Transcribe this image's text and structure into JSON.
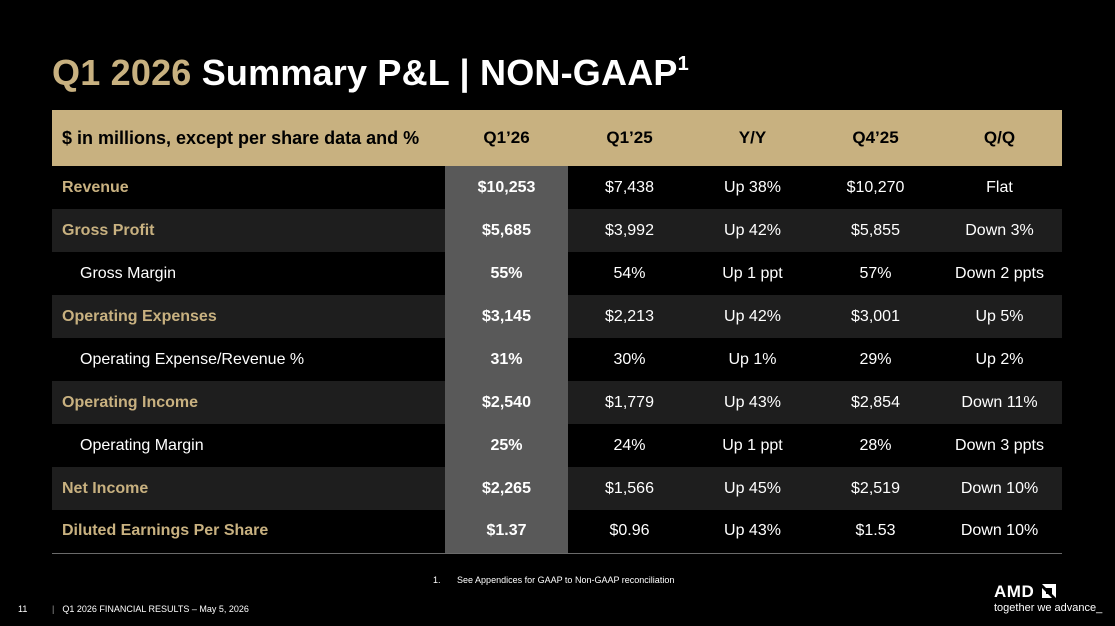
{
  "title": {
    "accent": "Q1 2026",
    "main": "Summary P&L  |  NON-GAAP",
    "superscript": "1"
  },
  "table": {
    "header": [
      "$ in millions, except per share data and %",
      "Q1’26",
      "Q1’25",
      "Y/Y",
      "Q4’25",
      "Q/Q"
    ],
    "rows": [
      {
        "label": "Revenue",
        "style": "primary",
        "values": [
          "$10,253",
          "$7,438",
          "Up 38%",
          "$10,270",
          "Flat"
        ]
      },
      {
        "label": "Gross Profit",
        "style": "primary",
        "values": [
          "$5,685",
          "$3,992",
          "Up 42%",
          "$5,855",
          "Down 3%"
        ]
      },
      {
        "label": "Gross Margin",
        "style": "sub",
        "values": [
          "55%",
          "54%",
          "Up 1 ppt",
          "57%",
          "Down 2 ppts"
        ]
      },
      {
        "label": "Operating Expenses",
        "style": "primary",
        "values": [
          "$3,145",
          "$2,213",
          "Up 42%",
          "$3,001",
          "Up 5%"
        ]
      },
      {
        "label": "Operating Expense/Revenue %",
        "style": "sub",
        "values": [
          "31%",
          "30%",
          "Up 1%",
          "29%",
          "Up 2%"
        ]
      },
      {
        "label": "Operating Income",
        "style": "primary",
        "values": [
          "$2,540",
          "$1,779",
          "Up 43%",
          "$2,854",
          "Down 11%"
        ]
      },
      {
        "label": "Operating Margin",
        "style": "sub",
        "values": [
          "25%",
          "24%",
          "Up 1 ppt",
          "28%",
          "Down 3 ppts"
        ]
      },
      {
        "label": "Net Income",
        "style": "primary",
        "values": [
          "$2,265",
          "$1,566",
          "Up 45%",
          "$2,519",
          "Down 10%"
        ]
      },
      {
        "label": "Diluted Earnings Per Share",
        "style": "primary",
        "values": [
          "$1.37",
          "$0.96",
          "Up 43%",
          "$1.53",
          "Down 10%"
        ]
      }
    ]
  },
  "footnote": {
    "number": "1.",
    "text": "See Appendices for GAAP to Non-GAAP reconciliation"
  },
  "footer": {
    "page_number": "11",
    "separator": "|",
    "text": "Q1 2026 FINANCIAL RESULTS – May 5, 2026"
  },
  "logo": {
    "word": "AMD",
    "tagline": "together we advance_"
  },
  "colors": {
    "gold": "#c8b180",
    "current_column": "#595959",
    "row_alt": "#1e1e1e",
    "background": "#000000"
  }
}
